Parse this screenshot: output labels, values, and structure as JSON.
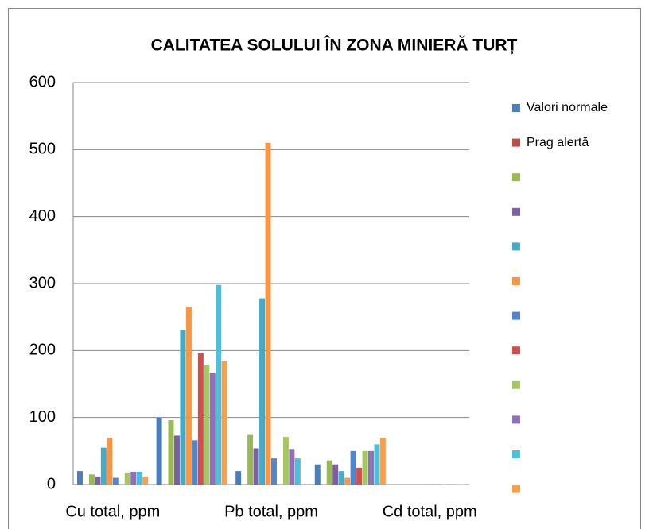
{
  "chart_data": {
    "type": "bar",
    "title": "CALITATEA SOLULUI ÎN ZONA MINIERĂ TURȚ",
    "categories": [
      "Cu total, ppm",
      null,
      "Pb total, ppm",
      null,
      "Cd total, ppm"
    ],
    "ylim": [
      0,
      600
    ],
    "yticks": [
      0,
      100,
      200,
      300,
      400,
      500,
      600
    ],
    "grid": true,
    "legend": "right",
    "series": [
      {
        "name": "Valori normale",
        "color": "#4a7ebb",
        "values": [
          20,
          100,
          20,
          30,
          null
        ]
      },
      {
        "name": "Prag alertă",
        "color": "#be4b48",
        "values": [
          null,
          null,
          null,
          null,
          null
        ]
      },
      {
        "color": "#98b954",
        "values": [
          15,
          96,
          74,
          36,
          null
        ]
      },
      {
        "color": "#7d60a0",
        "values": [
          12,
          73,
          54,
          30,
          null
        ]
      },
      {
        "color": "#46aac5",
        "values": [
          55,
          230,
          278,
          20,
          null
        ]
      },
      {
        "color": "#f79646",
        "values": [
          70,
          265,
          510,
          10,
          null
        ]
      },
      {
        "color": "#4f86d0",
        "values": [
          10,
          66,
          39,
          50,
          0.5
        ]
      },
      {
        "color": "#d24e4e",
        "values": [
          null,
          196,
          null,
          25,
          0.5
        ]
      },
      {
        "color": "#a5c663",
        "values": [
          18,
          178,
          71,
          50,
          0.5
        ]
      },
      {
        "color": "#8e6fb8",
        "values": [
          19,
          167,
          53,
          50,
          0.5
        ]
      },
      {
        "color": "#4bc0dd",
        "values": [
          19,
          298,
          39,
          60,
          0.5
        ]
      },
      {
        "color": "#f9a04d",
        "values": [
          12,
          184,
          null,
          70,
          0.5
        ]
      }
    ]
  }
}
